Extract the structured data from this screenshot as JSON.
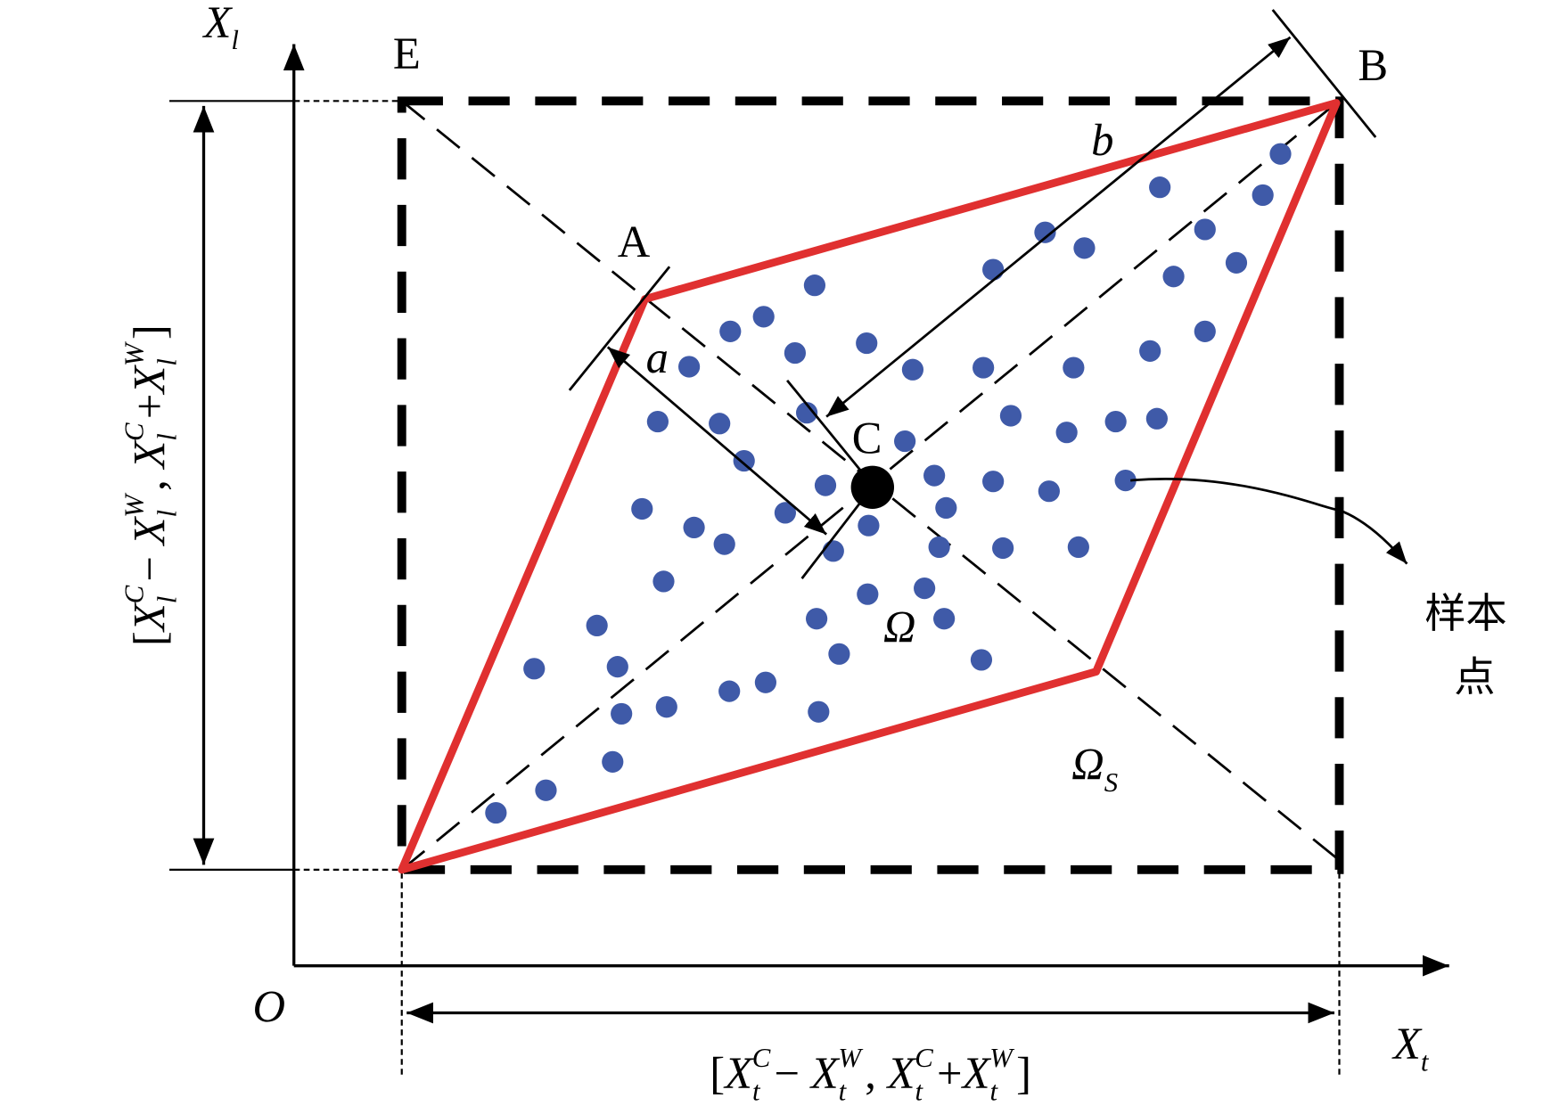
{
  "axes": {
    "y_label": {
      "base": "X",
      "sub": "l"
    },
    "x_label": {
      "base": "X",
      "sub": "t"
    },
    "origin": "O"
  },
  "points": {
    "E": "E",
    "A": "A",
    "B": "B",
    "C": "C"
  },
  "dimensions": {
    "a": "a",
    "b": "b"
  },
  "regions": {
    "omega": "Ω",
    "omega_s": {
      "base": "Ω",
      "sub": "S"
    }
  },
  "annotation": [
    "样本",
    "点"
  ],
  "x_interval": [
    {
      "text": "["
    },
    {
      "base": "X",
      "sub": "t",
      "sup": "C"
    },
    {
      "text": "− "
    },
    {
      "base": "X",
      "sub": "t",
      "sup": "W"
    },
    {
      "text": ", "
    },
    {
      "base": "X",
      "sub": "t",
      "sup": "C"
    },
    {
      "text": "+"
    },
    {
      "base": "X",
      "sub": "t",
      "sup": "W"
    },
    {
      "text": "]"
    }
  ],
  "y_interval": [
    {
      "text": "["
    },
    {
      "base": "X",
      "sub": "l",
      "sup": "C"
    },
    {
      "text": "− "
    },
    {
      "base": "X",
      "sub": "l",
      "sup": "W"
    },
    {
      "text": ", "
    },
    {
      "base": "X",
      "sub": "l",
      "sup": "C"
    },
    {
      "text": "+"
    },
    {
      "base": "X",
      "sub": "l",
      "sup": "W"
    },
    {
      "text": "]"
    }
  ]
}
